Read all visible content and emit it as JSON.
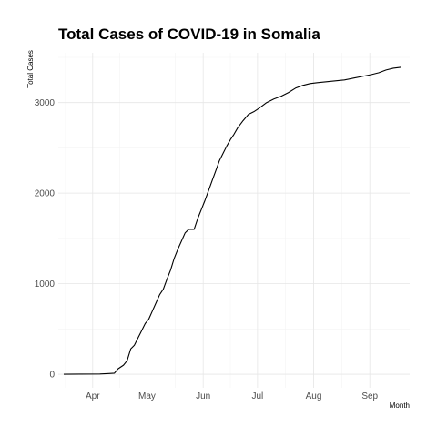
{
  "chart_data": {
    "type": "line",
    "title": "Total Cases of COVID-19 in Somalia",
    "xlabel": "Month",
    "ylabel": "Total Cases",
    "grid": true,
    "xlim": [
      "2020-03-13",
      "2020-09-23"
    ],
    "ylim": [
      -150,
      3550
    ],
    "x_ticks": [
      {
        "date": "2020-04-01",
        "label": "Apr"
      },
      {
        "date": "2020-05-01",
        "label": "May"
      },
      {
        "date": "2020-06-01",
        "label": "Jun"
      },
      {
        "date": "2020-07-01",
        "label": "Jul"
      },
      {
        "date": "2020-08-01",
        "label": "Aug"
      },
      {
        "date": "2020-09-01",
        "label": "Sep"
      }
    ],
    "y_ticks": [
      0,
      1000,
      2000,
      3000
    ],
    "series": [
      {
        "points": [
          [
            "2020-03-16",
            0
          ],
          [
            "2020-03-25",
            1
          ],
          [
            "2020-04-05",
            3
          ],
          [
            "2020-04-10",
            8
          ],
          [
            "2020-04-13",
            12
          ],
          [
            "2020-04-15",
            60
          ],
          [
            "2020-04-18",
            100
          ],
          [
            "2020-04-20",
            150
          ],
          [
            "2020-04-22",
            280
          ],
          [
            "2020-04-24",
            320
          ],
          [
            "2020-04-26",
            400
          ],
          [
            "2020-04-28",
            480
          ],
          [
            "2020-04-30",
            560
          ],
          [
            "2020-05-02",
            610
          ],
          [
            "2020-05-04",
            700
          ],
          [
            "2020-05-06",
            790
          ],
          [
            "2020-05-08",
            880
          ],
          [
            "2020-05-10",
            940
          ],
          [
            "2020-05-12",
            1050
          ],
          [
            "2020-05-14",
            1150
          ],
          [
            "2020-05-16",
            1280
          ],
          [
            "2020-05-18",
            1380
          ],
          [
            "2020-05-20",
            1470
          ],
          [
            "2020-05-22",
            1560
          ],
          [
            "2020-05-24",
            1600
          ],
          [
            "2020-05-27",
            1600
          ],
          [
            "2020-05-29",
            1720
          ],
          [
            "2020-05-31",
            1820
          ],
          [
            "2020-06-02",
            1920
          ],
          [
            "2020-06-04",
            2030
          ],
          [
            "2020-06-06",
            2140
          ],
          [
            "2020-06-08",
            2250
          ],
          [
            "2020-06-10",
            2360
          ],
          [
            "2020-06-12",
            2440
          ],
          [
            "2020-06-14",
            2520
          ],
          [
            "2020-06-16",
            2590
          ],
          [
            "2020-06-18",
            2650
          ],
          [
            "2020-06-20",
            2720
          ],
          [
            "2020-06-23",
            2800
          ],
          [
            "2020-06-26",
            2870
          ],
          [
            "2020-06-29",
            2900
          ],
          [
            "2020-07-02",
            2940
          ],
          [
            "2020-07-06",
            3000
          ],
          [
            "2020-07-10",
            3040
          ],
          [
            "2020-07-14",
            3070
          ],
          [
            "2020-07-18",
            3110
          ],
          [
            "2020-07-22",
            3160
          ],
          [
            "2020-07-26",
            3190
          ],
          [
            "2020-07-30",
            3210
          ],
          [
            "2020-08-03",
            3220
          ],
          [
            "2020-08-08",
            3230
          ],
          [
            "2020-08-13",
            3240
          ],
          [
            "2020-08-18",
            3250
          ],
          [
            "2020-08-23",
            3270
          ],
          [
            "2020-08-28",
            3290
          ],
          [
            "2020-09-02",
            3310
          ],
          [
            "2020-09-06",
            3330
          ],
          [
            "2020-09-10",
            3360
          ],
          [
            "2020-09-14",
            3380
          ],
          [
            "2020-09-18",
            3390
          ]
        ]
      }
    ]
  }
}
